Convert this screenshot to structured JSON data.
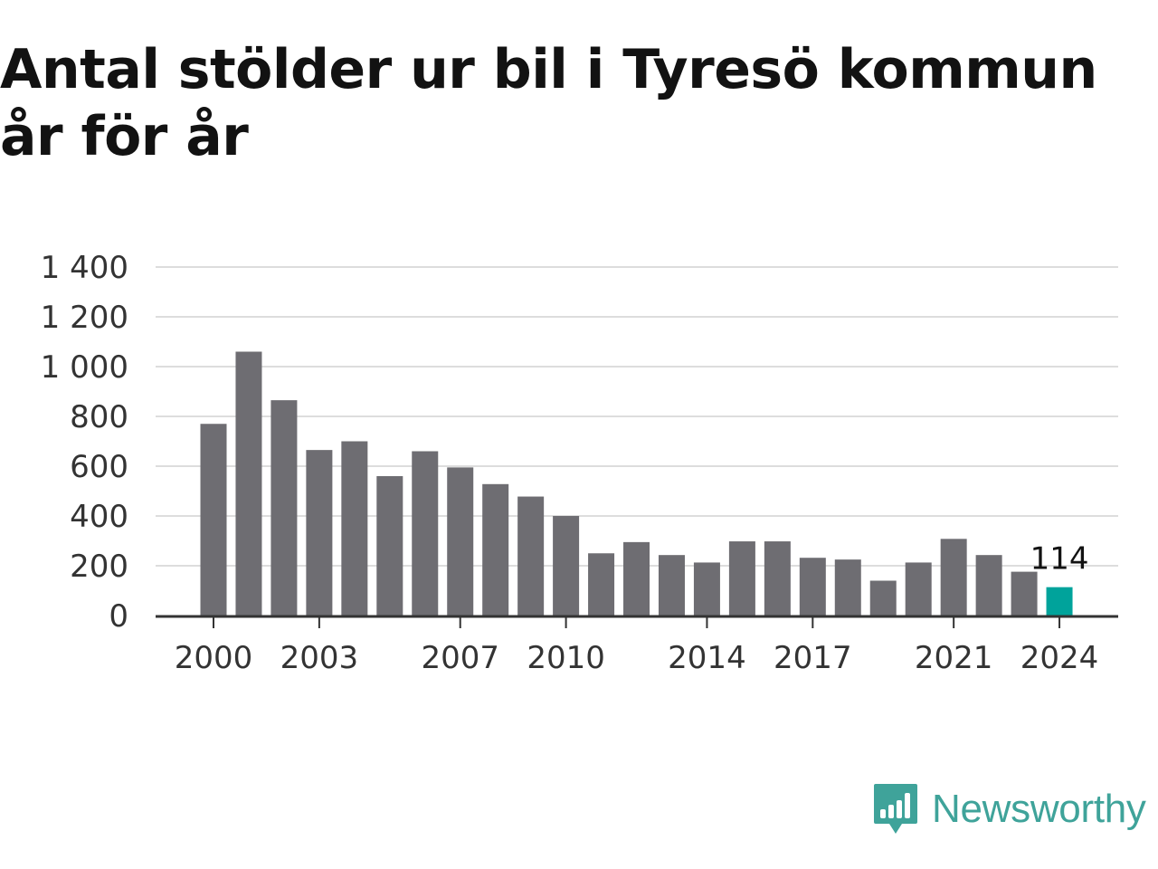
{
  "chart_data": {
    "type": "bar",
    "title": "Antal stölder ur bil i Tyresö kommun år för år",
    "categories": [
      "2000",
      "2001",
      "2002",
      "2003",
      "2004",
      "2005",
      "2006",
      "2007",
      "2008",
      "2009",
      "2010",
      "2011",
      "2012",
      "2013",
      "2014",
      "2015",
      "2016",
      "2017",
      "2018",
      "2019",
      "2020",
      "2021",
      "2022",
      "2023",
      "2024"
    ],
    "values": [
      770,
      1060,
      865,
      665,
      700,
      560,
      660,
      595,
      528,
      478,
      400,
      250,
      295,
      243,
      213,
      298,
      298,
      232,
      225,
      140,
      213,
      308,
      243,
      176,
      114
    ],
    "ylim": [
      0,
      1400
    ],
    "yticks": [
      0,
      200,
      400,
      600,
      800,
      1000,
      1200,
      1400
    ],
    "ytick_labels": [
      "0",
      "200",
      "400",
      "600",
      "800",
      "1 000",
      "1 200",
      "1 400"
    ],
    "xtick_labels": [
      "2000",
      "2003",
      "2007",
      "2010",
      "2014",
      "2017",
      "2021",
      "2024"
    ],
    "highlight": {
      "category": "2024",
      "label": "114"
    },
    "xlabel": "",
    "ylabel": "",
    "grid": true,
    "colors": {
      "bar": "#6e6d72",
      "highlight": "#00a39b",
      "grid": "#dddddd",
      "axis": "#333333"
    }
  },
  "brand": {
    "name": "Newsworthy",
    "icon": "newsworthy-logo-icon",
    "color": "#3fa39a"
  }
}
